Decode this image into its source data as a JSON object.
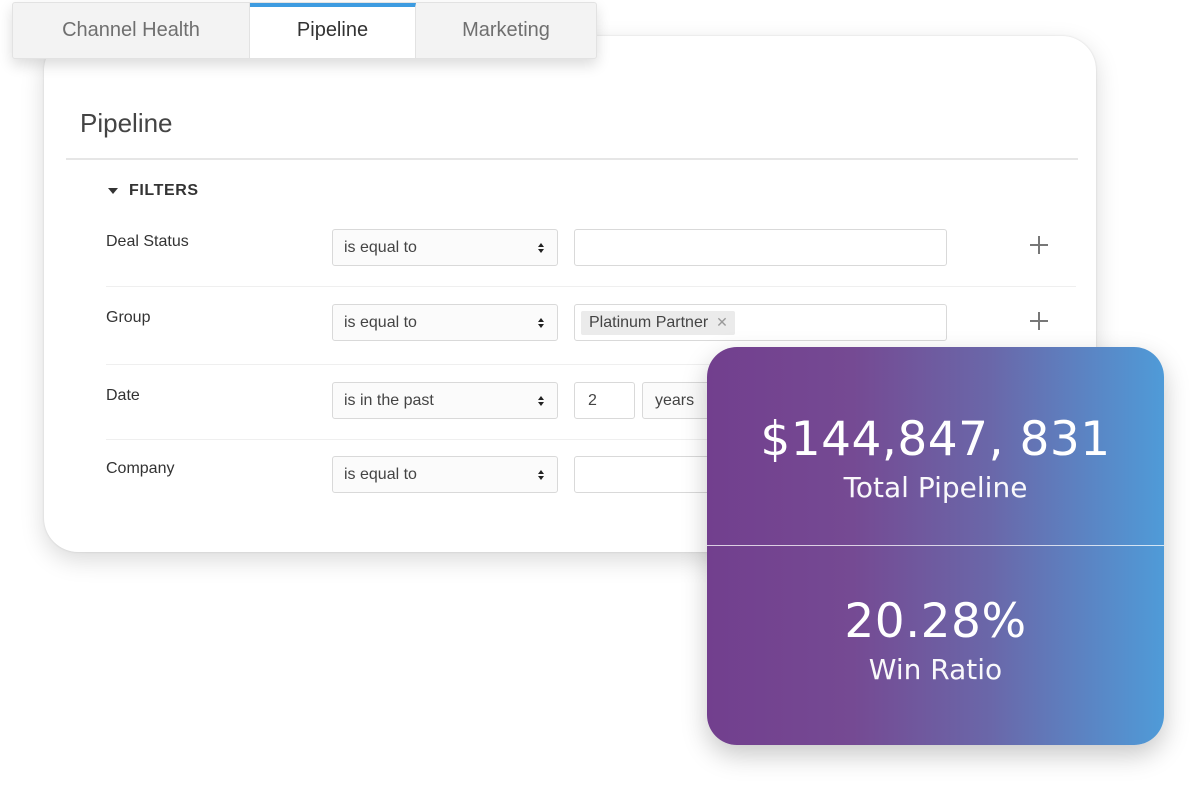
{
  "tabs": [
    {
      "label": "Channel Health",
      "active": false
    },
    {
      "label": "Pipeline",
      "active": true
    },
    {
      "label": "Marketing",
      "active": false
    }
  ],
  "card": {
    "title": "Pipeline",
    "filters_label": "FILTERS",
    "filters": [
      {
        "label": "Deal Status",
        "operator": "is equal to",
        "value": ""
      },
      {
        "label": "Group",
        "operator": "is equal to",
        "chip": "Platinum Partner"
      },
      {
        "label": "Date",
        "operator": "is in the past",
        "number": "2",
        "unit": "years"
      },
      {
        "label": "Company",
        "operator": "is equal to",
        "value": ""
      }
    ]
  },
  "metrics": {
    "total_pipeline_value": "$144,847, 831",
    "total_pipeline_label": "Total Pipeline",
    "win_ratio_value": "20.28%",
    "win_ratio_label": "Win Ratio"
  },
  "colors": {
    "accent_tab": "#3d9be0",
    "gradient_start": "#723f8e",
    "gradient_end": "#4f9bd8"
  },
  "icons": {
    "filters_toggle": "caret-down-icon",
    "select_arrows": "updown-arrows-icon",
    "add": "plus-icon",
    "remove_chip": "close-icon"
  }
}
